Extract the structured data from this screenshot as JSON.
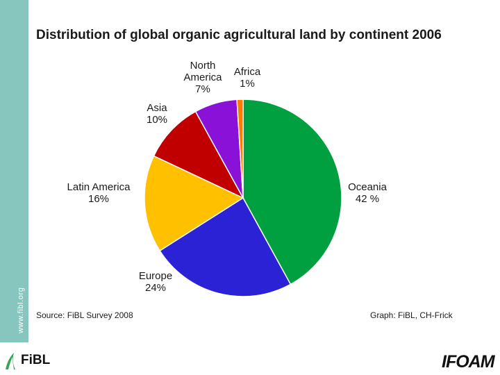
{
  "sidebar": {
    "url": "www.fibl.org",
    "color": "#87c5bf"
  },
  "chart_data": {
    "type": "pie",
    "title": "Distribution of global organic agricultural land by continent 2006",
    "slices": [
      {
        "label": "Oceania",
        "value": 42,
        "display": "42 %",
        "color": "#00a040"
      },
      {
        "label": "Europe",
        "value": 24,
        "display": "24%",
        "color": "#2b22d6"
      },
      {
        "label": "Latin America",
        "value": 16,
        "display": "16%",
        "color": "#ffc000"
      },
      {
        "label": "Asia",
        "value": 10,
        "display": "10%",
        "color": "#c00000"
      },
      {
        "label": "North America",
        "value": 7,
        "display": "7%",
        "color": "#8a12d8"
      },
      {
        "label": "Africa",
        "value": 1,
        "display": "1%",
        "color": "#ff7a00"
      }
    ]
  },
  "footer": {
    "source": "Source: FiBL Survey 2008",
    "credit": "Graph: FiBL, CH-Frick"
  },
  "logos": {
    "left": "FiBL",
    "right": "IFOAM"
  }
}
